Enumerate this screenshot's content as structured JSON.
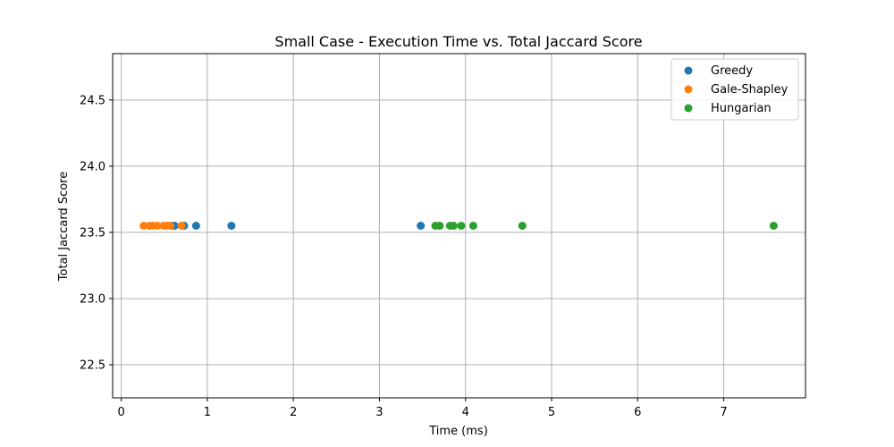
{
  "chart_data": {
    "type": "scatter",
    "title": "Small Case - Execution Time vs. Total Jaccard Score",
    "xlabel": "Time (ms)",
    "ylabel": "Total Jaccard Score",
    "xlim": [
      -0.1,
      7.95
    ],
    "ylim": [
      22.25,
      24.85
    ],
    "xticks": [
      0,
      1,
      2,
      3,
      4,
      5,
      6,
      7
    ],
    "yticks": [
      22.5,
      23.0,
      23.5,
      24.0,
      24.5
    ],
    "xtick_labels": [
      "0",
      "1",
      "2",
      "3",
      "4",
      "5",
      "6",
      "7"
    ],
    "ytick_labels": [
      "22.5",
      "23.0",
      "23.5",
      "24.0",
      "24.5"
    ],
    "grid": true,
    "legend_position": "top-right",
    "series": [
      {
        "name": "Greedy",
        "color": "#1f77b4",
        "points": [
          {
            "x": 0.58,
            "y": 23.55
          },
          {
            "x": 0.62,
            "y": 23.55
          },
          {
            "x": 0.73,
            "y": 23.55
          },
          {
            "x": 0.87,
            "y": 23.55
          },
          {
            "x": 1.28,
            "y": 23.55
          },
          {
            "x": 3.48,
            "y": 23.55
          }
        ]
      },
      {
        "name": "Gale-Shapley",
        "color": "#ff7f0e",
        "points": [
          {
            "x": 0.26,
            "y": 23.55
          },
          {
            "x": 0.33,
            "y": 23.55
          },
          {
            "x": 0.37,
            "y": 23.55
          },
          {
            "x": 0.42,
            "y": 23.55
          },
          {
            "x": 0.49,
            "y": 23.55
          },
          {
            "x": 0.53,
            "y": 23.55
          },
          {
            "x": 0.57,
            "y": 23.55
          },
          {
            "x": 0.7,
            "y": 23.55
          }
        ]
      },
      {
        "name": "Hungarian",
        "color": "#2ca02c",
        "points": [
          {
            "x": 3.65,
            "y": 23.55
          },
          {
            "x": 3.7,
            "y": 23.55
          },
          {
            "x": 3.82,
            "y": 23.55
          },
          {
            "x": 3.86,
            "y": 23.55
          },
          {
            "x": 3.95,
            "y": 23.55
          },
          {
            "x": 4.09,
            "y": 23.55
          },
          {
            "x": 4.66,
            "y": 23.55
          },
          {
            "x": 7.58,
            "y": 23.55
          }
        ]
      }
    ]
  }
}
